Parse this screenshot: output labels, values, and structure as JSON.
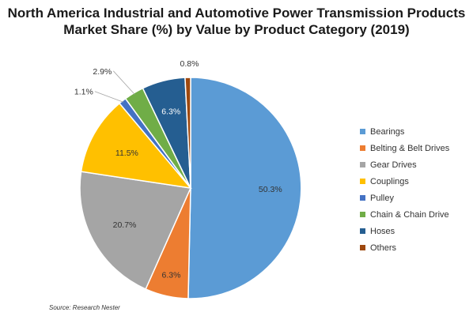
{
  "chart_data": {
    "type": "pie",
    "title_line1": "North America Industrial and Automotive Power Transmission Products",
    "title_line2": "Market Share (%) by Value by Product Category (2019)",
    "categories": [
      "Bearings",
      "Belting & Belt Drives",
      "Gear Drives",
      "Couplings",
      "Pulley",
      "Chain & Chain Drive",
      "Hoses",
      "Others"
    ],
    "values": [
      50.3,
      6.3,
      20.7,
      11.5,
      1.1,
      2.9,
      6.3,
      0.8
    ],
    "labels": [
      "50.3%",
      "6.3%",
      "20.7%",
      "11.5%",
      "1.1%",
      "2.9%",
      "6.3%",
      "0.8%"
    ],
    "colors": [
      "#5B9BD5",
      "#ED7D31",
      "#A5A5A5",
      "#FFC000",
      "#4472C4",
      "#70AD47",
      "#255E91",
      "#9E480E"
    ],
    "legend_position": "right",
    "start": "12 o'clock, clockwise"
  },
  "source": "Source: Research Nester"
}
